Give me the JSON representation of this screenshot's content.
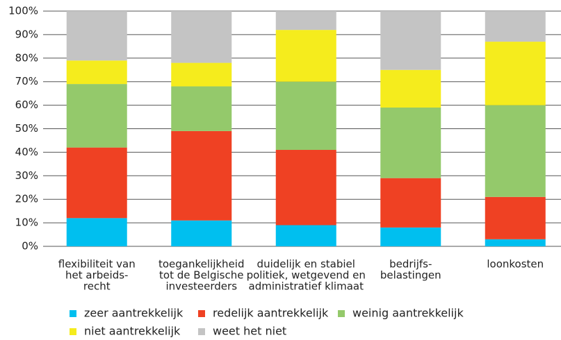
{
  "chart_data": {
    "type": "stacked_bar",
    "categories": [
      [
        "flexibiliteit van",
        "het arbeids-",
        "recht"
      ],
      [
        "toegankelijkheid",
        "tot de Belgische",
        "investeerders"
      ],
      [
        "duidelijk en stabiel",
        "politiek, wetgevend en",
        "administratief klimaat"
      ],
      [
        "bedrijfs-",
        "belastingen"
      ],
      [
        "loonkosten"
      ]
    ],
    "series": [
      {
        "name": "zeer aantrekkelijk",
        "color": "#00bfef",
        "values": [
          12,
          11,
          9,
          8,
          3
        ]
      },
      {
        "name": "redelijk aantrekkelijk",
        "color": "#ef4123",
        "values": [
          30,
          38,
          32,
          21,
          18
        ]
      },
      {
        "name": "weinig aantrekkelijk",
        "color": "#94c96b",
        "values": [
          27,
          19,
          29,
          30,
          39
        ]
      },
      {
        "name": "niet aantrekkelijk",
        "color": "#f5ec1d",
        "values": [
          10,
          10,
          22,
          16,
          27
        ]
      },
      {
        "name": "weet het niet",
        "color": "#c4c4c4",
        "values": [
          21,
          22,
          8,
          25,
          13
        ]
      }
    ],
    "ylim": [
      0,
      100
    ],
    "yticks": [
      {
        "value": 0,
        "label": "0%"
      },
      {
        "value": 10,
        "label": "10%"
      },
      {
        "value": 20,
        "label": "20%"
      },
      {
        "value": 30,
        "label": "30%"
      },
      {
        "value": 40,
        "label": "40%"
      },
      {
        "value": 50,
        "label": "50%"
      },
      {
        "value": 60,
        "label": "60%"
      },
      {
        "value": 70,
        "label": "70%"
      },
      {
        "value": 80,
        "label": "80%"
      },
      {
        "value": 90,
        "label": "90%"
      },
      {
        "value": 100,
        "label": "100%"
      }
    ],
    "grid": true
  }
}
